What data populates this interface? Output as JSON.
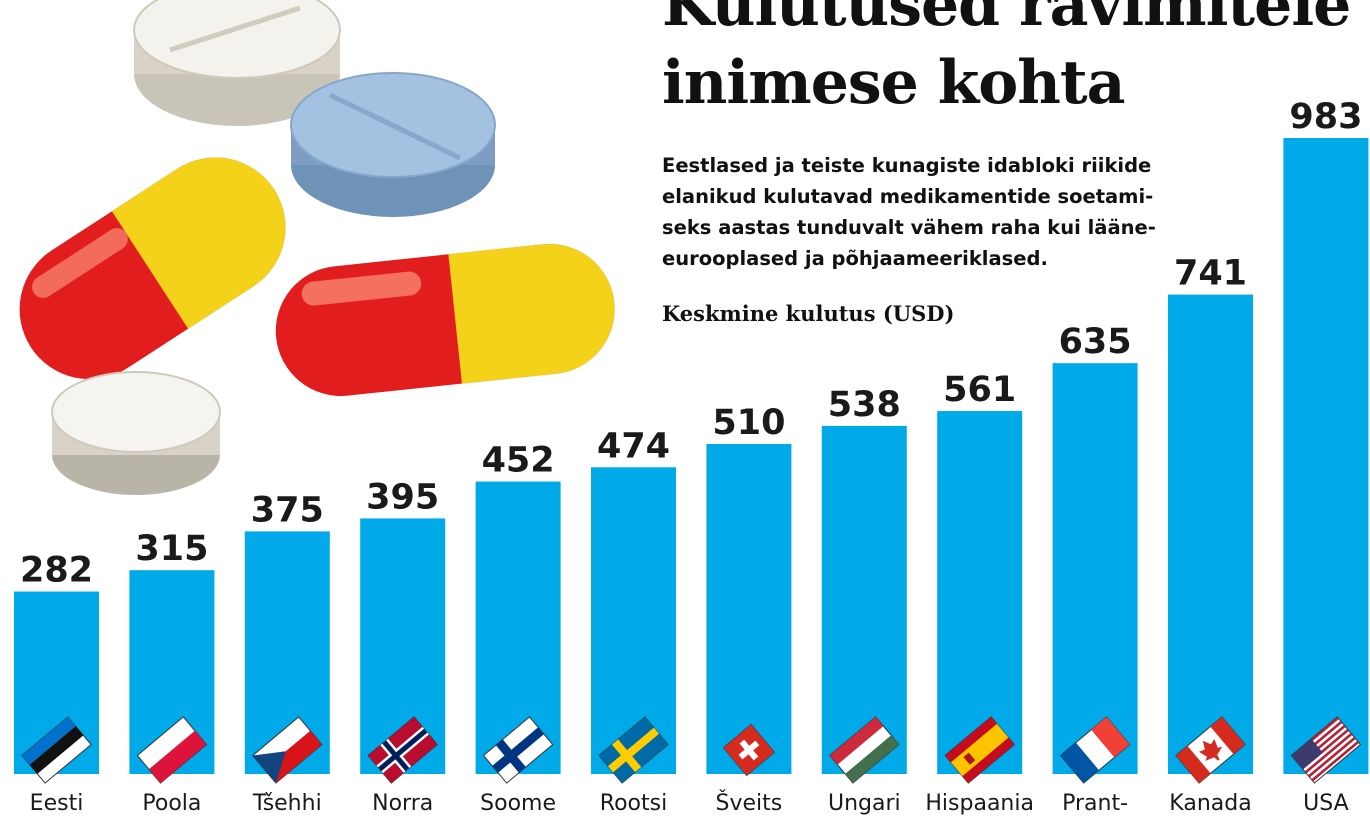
{
  "title_lines": [
    "Kulutused ravimitele",
    "inimese kohta"
  ],
  "subtitle": "Eestlased ja teiste kunagiste idabloki riikide\nelanikud kulutavad medikamentide soetami-\nseks aastas tunduvalt vähem raha kui lääne-\neurooplased ja põhjaameeriklased.",
  "unit_label": "Keskmine kulutus (USD)",
  "colors": {
    "bar": "#00a9e8",
    "text": "#1a1a1a"
  },
  "chart_data": {
    "type": "bar",
    "title": "Kulutused ravimitele inimese kohta",
    "ylabel": "Keskmine kulutus (USD)",
    "categories": [
      "Eesti",
      "Poola",
      "Tšehhi",
      "Norra",
      "Soome",
      "Rootsi",
      "Šveits",
      "Ungari",
      "Hispaania",
      "Prant-",
      "Kanada",
      "USA"
    ],
    "values": [
      282,
      315,
      375,
      395,
      452,
      474,
      510,
      538,
      561,
      635,
      741,
      983
    ],
    "flags": [
      "estonia-flag-icon",
      "poland-flag-icon",
      "czech-flag-icon",
      "norway-flag-icon",
      "finland-flag-icon",
      "sweden-flag-icon",
      "switzerland-flag-icon",
      "hungary-flag-icon",
      "spain-flag-icon",
      "france-flag-icon",
      "canada-flag-icon",
      "usa-flag-icon"
    ],
    "ylim": [
      0,
      983
    ],
    "grid": false,
    "legend": "none"
  }
}
